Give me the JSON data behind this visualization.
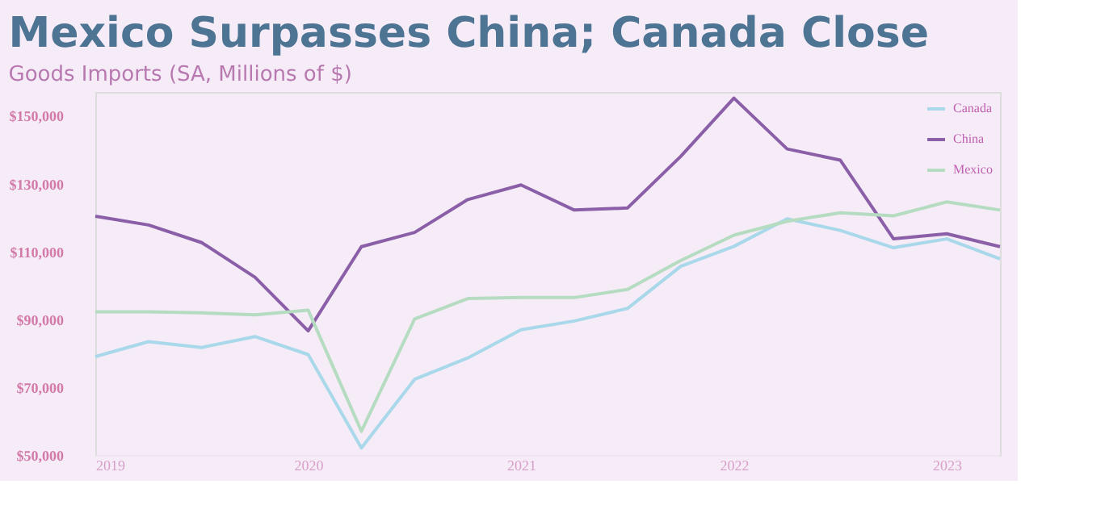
{
  "chart_data": {
    "type": "line",
    "title": "Mexico Surpasses China; Canada Close",
    "subtitle": "Goods Imports (SA, Millions of $)",
    "x": [
      2019,
      2019.25,
      2019.5,
      2019.75,
      2020,
      2020.25,
      2020.5,
      2020.75,
      2021,
      2021.25,
      2021.5,
      2021.75,
      2022,
      2022.25,
      2022.5,
      2022.75,
      2023,
      2023.25
    ],
    "series": [
      {
        "name": "Canada",
        "color": "#a8d8ea",
        "values": [
          79000,
          83400,
          81700,
          84900,
          79600,
          52100,
          72300,
          78600,
          86900,
          89500,
          93200,
          105600,
          111500,
          119600,
          116200,
          111100,
          113700,
          107800
        ]
      },
      {
        "name": "China",
        "color": "#8b5fa8",
        "values": [
          120400,
          117800,
          112600,
          102400,
          86600,
          111400,
          115600,
          125300,
          129600,
          122200,
          122800,
          138000,
          155200,
          140200,
          136900,
          113700,
          115200,
          111400
        ]
      },
      {
        "name": "Mexico",
        "color": "#b5dcc0",
        "values": [
          92200,
          92200,
          91900,
          91300,
          92700,
          57000,
          90100,
          96100,
          96400,
          96400,
          98800,
          107300,
          114800,
          118900,
          121400,
          120500,
          124600,
          122200
        ]
      }
    ],
    "xlim": [
      2019,
      2023.25
    ],
    "xticks": [
      2019,
      2020,
      2021,
      2022,
      2023
    ],
    "ylim": [
      50000,
      157000
    ],
    "yticks": [
      {
        "value": 50000,
        "label": "$50,000"
      },
      {
        "value": 70000,
        "label": "$70,000"
      },
      {
        "value": 90000,
        "label": "$90,000"
      },
      {
        "value": 110000,
        "label": "$110,000"
      },
      {
        "value": 130000,
        "label": "$130,000"
      },
      {
        "value": 150000,
        "label": "$150,000"
      }
    ],
    "grid": false,
    "legend": "top right",
    "marker": "none",
    "line_style": "solid"
  }
}
